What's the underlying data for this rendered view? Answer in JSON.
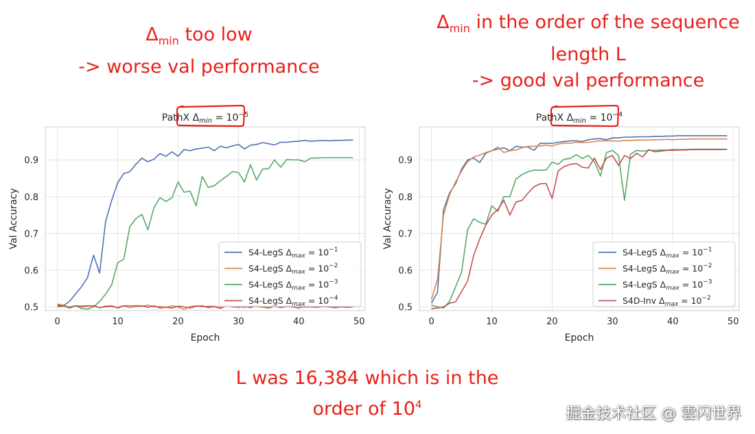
{
  "annotations": {
    "left": {
      "delta": "Δ",
      "sub": "min",
      "line1_rest": " too low",
      "line2": "-> worse val performance"
    },
    "right": {
      "delta": "Δ",
      "sub": "min",
      "line1_rest": " in the order of the sequence",
      "line2": "length L",
      "line3": "-> good val performance"
    },
    "bottom": {
      "line1": "L was 16,384 which is in the",
      "line2_base": "order of 10",
      "line2_sup": "4"
    },
    "circle_color": "#e8201a",
    "text_color": "#e8201a"
  },
  "watermark": "掘金技术社区 @ 雲闪世界",
  "chart_data": [
    {
      "type": "line",
      "title": {
        "prefix": "PathX ",
        "delta": "Δ",
        "sub": "min",
        "eq": " = 10",
        "sup": "−5"
      },
      "xlabel": "Epoch",
      "ylabel": "Val Accuracy",
      "xlim": [
        -2,
        51
      ],
      "ylim": [
        0.49,
        0.99
      ],
      "xticks": [
        0,
        10,
        20,
        30,
        40,
        50
      ],
      "yticks": [
        0.5,
        0.6,
        0.7,
        0.8,
        0.9
      ],
      "ytick_labels": [
        "0.5",
        "0.6",
        "0.7",
        "0.8",
        "0.9"
      ],
      "grid": true,
      "legend_position": "lower-right",
      "x": [
        0,
        1,
        2,
        3,
        4,
        5,
        6,
        7,
        8,
        9,
        10,
        11,
        12,
        13,
        14,
        15,
        16,
        17,
        18,
        19,
        20,
        21,
        22,
        23,
        24,
        25,
        26,
        27,
        28,
        29,
        30,
        31,
        32,
        33,
        34,
        35,
        36,
        37,
        38,
        39,
        40,
        41,
        42,
        43,
        44,
        45,
        46,
        47,
        48,
        49
      ],
      "series": [
        {
          "name": "S4-LegS",
          "legend_sub": "max",
          "legend_sup": "−1",
          "color": "#4c72b0",
          "values": [
            0.505,
            0.503,
            0.515,
            0.535,
            0.555,
            0.58,
            0.641,
            0.592,
            0.733,
            0.79,
            0.838,
            0.863,
            0.868,
            0.888,
            0.905,
            0.895,
            0.902,
            0.917,
            0.91,
            0.922,
            0.91,
            0.928,
            0.925,
            0.93,
            0.932,
            0.935,
            0.925,
            0.937,
            0.933,
            0.938,
            0.942,
            0.93,
            0.94,
            0.942,
            0.947,
            0.944,
            0.941,
            0.948,
            0.948,
            0.95,
            0.951,
            0.953,
            0.951,
            0.952,
            0.953,
            0.952,
            0.953,
            0.953,
            0.954,
            0.954
          ]
        },
        {
          "name": "S4-LegS",
          "legend_sub": "max",
          "legend_sup": "−2",
          "color": "#dd8452",
          "values": [
            0.508,
            0.505,
            0.497,
            0.503,
            0.5,
            0.502,
            0.503,
            0.498,
            0.5,
            0.501,
            0.499,
            0.503,
            0.498,
            0.501,
            0.502,
            0.505,
            0.5,
            0.501,
            0.499,
            0.503,
            0.5,
            0.493,
            0.501,
            0.503,
            0.5,
            0.502,
            0.501,
            0.499,
            0.503,
            0.5,
            0.502,
            0.498,
            0.503,
            0.501,
            0.499,
            0.5,
            0.502,
            0.498,
            0.501,
            0.5,
            0.502,
            0.499,
            0.5,
            0.501,
            0.502,
            0.5,
            0.499,
            0.501,
            0.5,
            0.501
          ]
        },
        {
          "name": "S4-LegS",
          "legend_sub": "max",
          "legend_sup": "−3",
          "color": "#55a868",
          "values": [
            0.5,
            0.502,
            0.5,
            0.503,
            0.496,
            0.494,
            0.5,
            0.515,
            0.535,
            0.56,
            0.62,
            0.63,
            0.718,
            0.74,
            0.752,
            0.71,
            0.77,
            0.797,
            0.787,
            0.797,
            0.84,
            0.812,
            0.815,
            0.775,
            0.855,
            0.825,
            0.83,
            0.843,
            0.855,
            0.868,
            0.866,
            0.84,
            0.887,
            0.845,
            0.875,
            0.876,
            0.9,
            0.88,
            0.901,
            0.9,
            0.9,
            0.895,
            0.905,
            0.905,
            0.906,
            0.906,
            0.906,
            0.906,
            0.906,
            0.906
          ]
        },
        {
          "name": "S4-LegS",
          "legend_sub": "max",
          "legend_sup": "−4",
          "color": "#c44e52",
          "values": [
            0.503,
            0.503,
            0.497,
            0.503,
            0.502,
            0.503,
            0.503,
            0.498,
            0.502,
            0.503,
            0.497,
            0.503,
            0.503,
            0.503,
            0.503,
            0.499,
            0.503,
            0.497,
            0.499,
            0.497,
            0.502,
            0.5,
            0.497,
            0.502,
            0.503,
            0.498,
            0.501,
            0.496,
            0.503,
            0.5,
            0.499,
            0.502,
            0.498,
            0.503,
            0.5,
            0.497,
            0.502,
            0.499,
            0.501,
            0.5,
            0.497,
            0.502,
            0.5,
            0.499,
            0.501,
            0.5,
            0.498,
            0.5,
            0.499,
            0.5
          ]
        }
      ]
    },
    {
      "type": "line",
      "title": {
        "prefix": "PathX ",
        "delta": "Δ",
        "sub": "min",
        "eq": " = 10",
        "sup": "−4"
      },
      "xlabel": "Epoch",
      "ylabel": "Val Accuracy",
      "xlim": [
        -2,
        51
      ],
      "ylim": [
        0.49,
        0.99
      ],
      "xticks": [
        0,
        10,
        20,
        30,
        40,
        50
      ],
      "yticks": [
        0.5,
        0.6,
        0.7,
        0.8,
        0.9
      ],
      "ytick_labels": [
        "0.5",
        "0.6",
        "0.7",
        "0.8",
        "0.9"
      ],
      "grid": true,
      "legend_position": "lower-right",
      "x": [
        0,
        1,
        2,
        3,
        4,
        5,
        6,
        7,
        8,
        9,
        10,
        11,
        12,
        13,
        14,
        15,
        16,
        17,
        18,
        19,
        20,
        21,
        22,
        23,
        24,
        25,
        26,
        27,
        28,
        29,
        30,
        31,
        32,
        33,
        34,
        35,
        36,
        37,
        38,
        39,
        40,
        41,
        42,
        43,
        44,
        45,
        46,
        47,
        48,
        49
      ],
      "series": [
        {
          "name": "S4-LegS",
          "legend_sub": "max",
          "legend_sup": "−1",
          "color": "#4c72b0",
          "values": [
            0.51,
            0.54,
            0.765,
            0.81,
            0.835,
            0.875,
            0.9,
            0.905,
            0.893,
            0.918,
            0.925,
            0.93,
            0.933,
            0.925,
            0.937,
            0.935,
            0.935,
            0.926,
            0.945,
            0.945,
            0.945,
            0.948,
            0.95,
            0.952,
            0.952,
            0.95,
            0.955,
            0.957,
            0.958,
            0.955,
            0.96,
            0.96,
            0.962,
            0.962,
            0.963,
            0.963,
            0.963,
            0.964,
            0.964,
            0.965,
            0.965,
            0.966,
            0.966,
            0.966,
            0.966,
            0.966,
            0.966,
            0.966,
            0.966,
            0.966
          ]
        },
        {
          "name": "S4-LegS",
          "legend_sub": "max",
          "legend_sup": "−2",
          "color": "#dd8452",
          "values": [
            0.52,
            0.575,
            0.75,
            0.805,
            0.84,
            0.87,
            0.895,
            0.908,
            0.913,
            0.92,
            0.925,
            0.935,
            0.92,
            0.925,
            0.927,
            0.933,
            0.937,
            0.937,
            0.938,
            0.94,
            0.938,
            0.943,
            0.946,
            0.945,
            0.948,
            0.947,
            0.948,
            0.95,
            0.952,
            0.952,
            0.952,
            0.951,
            0.953,
            0.953,
            0.954,
            0.954,
            0.954,
            0.955,
            0.955,
            0.956,
            0.955,
            0.956,
            0.956,
            0.957,
            0.957,
            0.957,
            0.957,
            0.957,
            0.957,
            0.957
          ]
        },
        {
          "name": "S4-LegS",
          "legend_sub": "max",
          "legend_sup": "−3",
          "color": "#55a868",
          "values": [
            0.505,
            0.5,
            0.497,
            0.515,
            0.555,
            0.595,
            0.71,
            0.74,
            0.73,
            0.725,
            0.775,
            0.76,
            0.8,
            0.8,
            0.848,
            0.86,
            0.868,
            0.872,
            0.872,
            0.872,
            0.894,
            0.888,
            0.902,
            0.904,
            0.914,
            0.904,
            0.912,
            0.895,
            0.856,
            0.92,
            0.926,
            0.912,
            0.79,
            0.916,
            0.926,
            0.924,
            0.926,
            0.926,
            0.927,
            0.927,
            0.928,
            0.928,
            0.928,
            0.929,
            0.929,
            0.929,
            0.929,
            0.929,
            0.929,
            0.929
          ]
        },
        {
          "name": "S4D-Inv",
          "legend_sub": "max",
          "legend_sup": "−2",
          "color": "#c44e52",
          "values": [
            0.495,
            0.497,
            0.5,
            0.51,
            0.514,
            0.542,
            0.57,
            0.64,
            0.685,
            0.722,
            0.75,
            0.765,
            0.79,
            0.75,
            0.785,
            0.79,
            0.81,
            0.827,
            0.835,
            0.836,
            0.795,
            0.87,
            0.882,
            0.888,
            0.89,
            0.88,
            0.878,
            0.905,
            0.874,
            0.905,
            0.912,
            0.885,
            0.912,
            0.904,
            0.918,
            0.908,
            0.928,
            0.922,
            0.924,
            0.926,
            0.926,
            0.927,
            0.927,
            0.928,
            0.928,
            0.928,
            0.928,
            0.928,
            0.928,
            0.929
          ]
        }
      ]
    }
  ]
}
